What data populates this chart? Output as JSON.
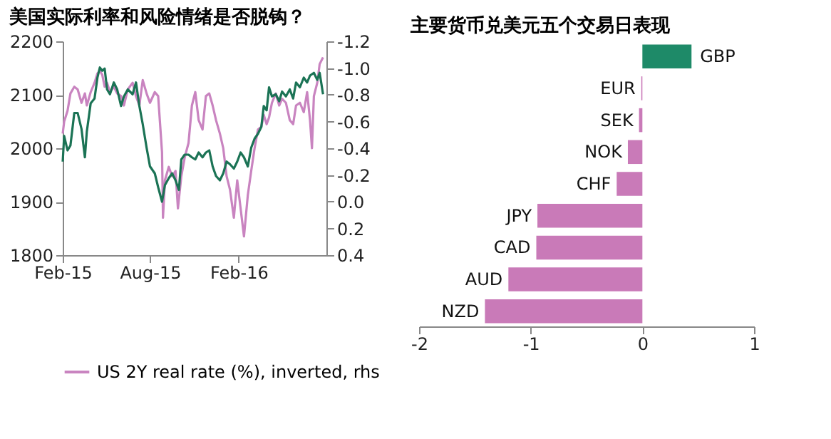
{
  "chart_data": [
    {
      "type": "line",
      "title": "美国实际利率和风险情绪是否脱钩？",
      "xlim": [
        "2015-02-01",
        "2016-08-01"
      ],
      "xticks": [
        {
          "value": "2015-02-01",
          "label": "Feb-15"
        },
        {
          "value": "2015-08-01",
          "label": "Aug-15"
        },
        {
          "value": "2016-02-01",
          "label": "Feb-16"
        }
      ],
      "ylim": [
        1800,
        2200
      ],
      "yticks": [
        1800,
        1900,
        2000,
        2100,
        2200
      ],
      "y2lim": [
        0.4,
        -1.2
      ],
      "y2ticks": [
        0.4,
        0.2,
        {
          "value": 0,
          "label": "0.0"
        },
        -0.2,
        -0.4,
        -0.6,
        -0.8,
        {
          "value": -1,
          "label": "-1.0"
        },
        -1.2
      ],
      "grid": false,
      "legend": "bottom",
      "line_style": "solid",
      "marker": "none",
      "series": [
        {
          "name": "US 2Y real rate (%), inverted, rhs",
          "color": "#c984c0",
          "axis": "y2",
          "x": [
            "2015-02-01",
            "2015-02-04",
            "2015-02-11",
            "2015-02-17",
            "2015-02-25",
            "2015-03-04",
            "2015-03-12",
            "2015-03-19",
            "2015-03-23",
            "2015-03-31",
            "2015-04-08",
            "2015-04-14",
            "2015-04-19",
            "2015-04-24",
            "2015-04-29",
            "2015-05-04",
            "2015-05-10",
            "2015-05-18",
            "2015-05-25",
            "2015-06-02",
            "2015-06-08",
            "2015-06-16",
            "2015-06-26",
            "2015-07-03",
            "2015-07-10",
            "2015-07-17",
            "2015-07-25",
            "2015-08-01",
            "2015-08-11",
            "2015-08-18",
            "2015-08-26",
            "2015-08-28",
            "2015-09-01",
            "2015-09-09",
            "2015-09-16",
            "2015-09-23",
            "2015-09-28",
            "2015-10-05",
            "2015-10-12",
            "2015-10-20",
            "2015-10-27",
            "2015-11-03",
            "2015-11-10",
            "2015-11-18",
            "2015-11-25",
            "2015-12-02",
            "2015-12-09",
            "2015-12-16",
            "2015-12-24",
            "2015-12-31",
            "2016-01-07",
            "2016-01-14",
            "2016-01-22",
            "2016-01-29",
            "2016-02-05",
            "2016-02-12",
            "2016-02-20",
            "2016-02-27",
            "2016-03-05",
            "2016-03-12",
            "2016-03-19",
            "2016-03-24",
            "2016-03-30",
            "2016-04-04",
            "2016-04-10",
            "2016-04-18",
            "2016-04-25",
            "2016-05-01",
            "2016-05-09",
            "2016-05-17",
            "2016-05-24",
            "2016-05-30",
            "2016-06-07",
            "2016-06-15",
            "2016-06-22",
            "2016-06-28",
            "2016-07-02",
            "2016-07-06",
            "2016-07-13",
            "2016-07-18",
            "2016-07-25"
          ],
          "values": [
            -0.51,
            -0.6,
            -0.68,
            -0.81,
            -0.86,
            -0.84,
            -0.74,
            -0.81,
            -0.72,
            -0.82,
            -0.89,
            -0.96,
            -0.98,
            -0.95,
            -0.86,
            -0.89,
            -0.82,
            -0.86,
            -0.81,
            -0.79,
            -0.72,
            -0.84,
            -0.89,
            -0.79,
            -0.72,
            -0.91,
            -0.81,
            -0.74,
            -0.82,
            -0.79,
            -0.37,
            0.12,
            -0.16,
            -0.26,
            -0.19,
            -0.23,
            0.05,
            -0.19,
            -0.33,
            -0.44,
            -0.72,
            -0.82,
            -0.61,
            -0.54,
            -0.79,
            -0.81,
            -0.72,
            -0.61,
            -0.51,
            -0.4,
            -0.19,
            -0.09,
            0.12,
            -0.16,
            0.05,
            0.26,
            -0.05,
            -0.23,
            -0.4,
            -0.54,
            -0.56,
            -0.65,
            -0.58,
            -0.63,
            -0.74,
            -0.81,
            -0.72,
            -0.77,
            -0.74,
            -0.61,
            -0.58,
            -0.72,
            -0.74,
            -0.67,
            -0.82,
            -0.61,
            -0.4,
            -0.79,
            -0.89,
            -1.03,
            -1.08
          ]
        },
        {
          "color": "#1b7355",
          "x": [
            "2015-02-01",
            "2015-02-04",
            "2015-02-11",
            "2015-02-17",
            "2015-02-25",
            "2015-03-04",
            "2015-03-12",
            "2015-03-19",
            "2015-03-23",
            "2015-03-31",
            "2015-04-08",
            "2015-04-14",
            "2015-04-19",
            "2015-04-24",
            "2015-04-29",
            "2015-05-04",
            "2015-05-10",
            "2015-05-18",
            "2015-05-25",
            "2015-06-02",
            "2015-06-08",
            "2015-06-16",
            "2015-06-26",
            "2015-07-03",
            "2015-07-10",
            "2015-07-17",
            "2015-07-25",
            "2015-08-01",
            "2015-08-11",
            "2015-08-18",
            "2015-08-26",
            "2015-09-01",
            "2015-09-09",
            "2015-09-16",
            "2015-09-23",
            "2015-09-30",
            "2015-10-05",
            "2015-10-12",
            "2015-10-20",
            "2015-10-27",
            "2015-11-03",
            "2015-11-10",
            "2015-11-18",
            "2015-11-25",
            "2015-12-02",
            "2015-12-09",
            "2015-12-16",
            "2015-12-24",
            "2015-12-31",
            "2016-01-07",
            "2016-01-14",
            "2016-01-22",
            "2016-01-29",
            "2016-02-05",
            "2016-02-12",
            "2016-02-20",
            "2016-02-27",
            "2016-03-05",
            "2016-03-12",
            "2016-03-19",
            "2016-03-24",
            "2016-03-30",
            "2016-04-04",
            "2016-04-10",
            "2016-04-18",
            "2016-04-25",
            "2016-05-01",
            "2016-05-09",
            "2016-05-17",
            "2016-05-24",
            "2016-05-30",
            "2016-06-07",
            "2016-06-15",
            "2016-06-22",
            "2016-06-28",
            "2016-07-06",
            "2016-07-13",
            "2016-07-18",
            "2016-07-25"
          ],
          "values": [
            1975,
            2023,
            1996,
            2005,
            2066,
            2066,
            2036,
            1983,
            2031,
            2084,
            2093,
            2132,
            2151,
            2145,
            2149,
            2110,
            2101,
            2123,
            2110,
            2079,
            2097,
            2110,
            2101,
            2123,
            2079,
            2045,
            2001,
            1966,
            1953,
            1927,
            1900,
            1931,
            1944,
            1953,
            1940,
            1922,
            1979,
            1988,
            1988,
            1983,
            1979,
            1992,
            1983,
            1992,
            1996,
            1966,
            1948,
            1940,
            1953,
            1975,
            1970,
            1962,
            1975,
            1992,
            1983,
            1966,
            2001,
            2018,
            2027,
            2040,
            2079,
            2071,
            2114,
            2097,
            2101,
            2088,
            2106,
            2097,
            2110,
            2093,
            2123,
            2114,
            2132,
            2123,
            2136,
            2141,
            2128,
            2141,
            2101
          ]
        }
      ]
    },
    {
      "type": "bar",
      "orientation": "horizontal",
      "title": "主要货币兑美元五个交易日表现",
      "categories": [
        "GBP",
        "EUR",
        "SEK",
        "NOK",
        "CHF",
        "JPY",
        "CAD",
        "AUD",
        "NZD"
      ],
      "values": [
        0.44,
        -0.01,
        -0.03,
        -0.13,
        -0.23,
        -0.94,
        -0.95,
        -1.2,
        -1.41
      ],
      "colors": [
        "#1e8a68",
        "#c97ab8",
        "#c97ab8",
        "#c97ab8",
        "#c97ab8",
        "#c97ab8",
        "#c97ab8",
        "#c97ab8",
        "#c97ab8"
      ],
      "xlim": [
        -2,
        1
      ],
      "xticks": [
        -2,
        -1,
        0,
        1
      ],
      "grid": false
    }
  ]
}
